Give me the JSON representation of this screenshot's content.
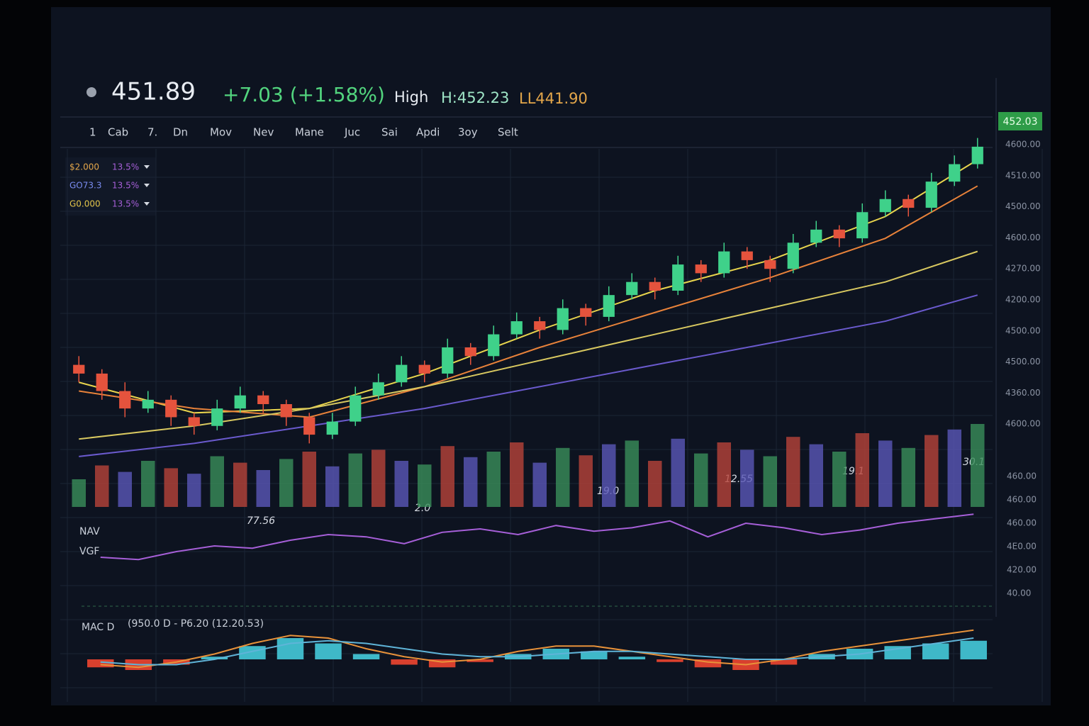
{
  "header": {
    "price": "451.89",
    "change": "+7.03 (+1.58%)",
    "high_label": "High",
    "high": "H:452.23",
    "low": "LL441.90"
  },
  "tabs": [
    "1",
    "Cab",
    "7.",
    "Dn",
    "Mov",
    "Nev",
    "Mane",
    "Juc",
    "Sai",
    "Apdi",
    "3oy",
    "Selt"
  ],
  "indicators": [
    {
      "value": "$2.000",
      "pct": "13.5%"
    },
    {
      "value": "GO73.3",
      "pct": "13.5%"
    },
    {
      "value": "G0.000",
      "pct": "13.5%"
    }
  ],
  "price_tag": "452.03",
  "price_axis_labels": [
    "4600.00",
    "4510.00",
    "4500.00",
    "4600.00",
    "4270.00",
    "4200.00",
    "4500.00",
    "4500.00",
    "4360.00",
    "4600.00"
  ],
  "lower_axis_labels": [
    "460.00",
    "460.00",
    "460.00",
    "4E0.00",
    "420.00",
    "40.00"
  ],
  "time_labels": [
    "77.56",
    "2.0",
    "19.0",
    "12.55",
    "19.1",
    "30.1"
  ],
  "panel_labels": {
    "nav": "NAV",
    "vgf": "VGF",
    "macd": "MAC D",
    "macd_params": "(950.0 D - P6.20 (12.20.53)"
  },
  "chart_data": {
    "type": "candlestick",
    "ylim": [
      380,
      458
    ],
    "up_color": "#3fd18a",
    "down_color": "#e5533d",
    "candles": [
      [
        402,
        404,
        398,
        400
      ],
      [
        400,
        401,
        394,
        396
      ],
      [
        396,
        398,
        390,
        392
      ],
      [
        392,
        396,
        391,
        394
      ],
      [
        394,
        395,
        388,
        390
      ],
      [
        390,
        391,
        386,
        388
      ],
      [
        388,
        394,
        387,
        392
      ],
      [
        392,
        397,
        391,
        395
      ],
      [
        395,
        396,
        391,
        393
      ],
      [
        393,
        394,
        388,
        390
      ],
      [
        390,
        391,
        384,
        386
      ],
      [
        386,
        391,
        385,
        389
      ],
      [
        389,
        397,
        388,
        395
      ],
      [
        395,
        400,
        394,
        398
      ],
      [
        398,
        404,
        397,
        402
      ],
      [
        402,
        403,
        398,
        400
      ],
      [
        400,
        408,
        399,
        406
      ],
      [
        406,
        407,
        402,
        404
      ],
      [
        404,
        411,
        403,
        409
      ],
      [
        409,
        414,
        408,
        412
      ],
      [
        412,
        413,
        408,
        410
      ],
      [
        410,
        417,
        409,
        415
      ],
      [
        415,
        416,
        411,
        413
      ],
      [
        413,
        420,
        412,
        418
      ],
      [
        418,
        423,
        417,
        421
      ],
      [
        421,
        422,
        417,
        419
      ],
      [
        419,
        427,
        418,
        425
      ],
      [
        425,
        426,
        421,
        423
      ],
      [
        423,
        430,
        422,
        428
      ],
      [
        428,
        429,
        424,
        426
      ],
      [
        426,
        427,
        421,
        424
      ],
      [
        424,
        432,
        423,
        430
      ],
      [
        430,
        435,
        429,
        433
      ],
      [
        433,
        434,
        429,
        431
      ],
      [
        431,
        439,
        430,
        437
      ],
      [
        437,
        442,
        436,
        440
      ],
      [
        440,
        441,
        436,
        438
      ],
      [
        438,
        446,
        437,
        444
      ],
      [
        444,
        450,
        443,
        448
      ],
      [
        448,
        454,
        447,
        452
      ]
    ],
    "volume_ylim": [
      0,
      100
    ],
    "volume": [
      30,
      45,
      38,
      50,
      42,
      36,
      55,
      48,
      40,
      52,
      60,
      44,
      58,
      62,
      50,
      46,
      66,
      54,
      60,
      70,
      48,
      64,
      56,
      68,
      72,
      50,
      74,
      58,
      70,
      62,
      55,
      76,
      68,
      60,
      80,
      72,
      64,
      78,
      84,
      90
    ],
    "ma_x": [
      0,
      5,
      10,
      15,
      20,
      25,
      30,
      35,
      39
    ],
    "ma": [
      {
        "color": "#e8d44d",
        "values": [
          398,
          391,
          392,
          400,
          410,
          419,
          426,
          436,
          449
        ]
      },
      {
        "color": "#e8823a",
        "values": [
          396,
          392,
          390,
          397,
          406,
          414,
          422,
          431,
          443
        ]
      },
      {
        "color": "#d8c860",
        "values": [
          385,
          388,
          392,
          397,
          403,
          409,
          415,
          421,
          428
        ]
      },
      {
        "color": "#6a5acd",
        "values": [
          381,
          384,
          388,
          392,
          397,
          402,
          407,
          412,
          418
        ]
      }
    ],
    "rsi_ylim": [
      0,
      100
    ],
    "rsi": [
      40,
      38,
      45,
      50,
      48,
      55,
      60,
      58,
      52,
      62,
      65,
      60,
      68,
      63,
      66,
      72,
      58,
      70,
      66,
      60,
      64,
      70,
      74,
      78
    ],
    "macd_ylim": [
      -1.2,
      1.2
    ],
    "macd_hist": [
      -0.3,
      -0.4,
      -0.2,
      0.1,
      0.5,
      0.8,
      0.6,
      0.2,
      -0.2,
      -0.3,
      -0.1,
      0.2,
      0.4,
      0.3,
      0.1,
      -0.1,
      -0.3,
      -0.4,
      -0.2,
      0.2,
      0.4,
      0.5,
      0.6,
      0.7
    ],
    "macd_line": [
      -0.2,
      -0.3,
      -0.1,
      0.2,
      0.6,
      0.9,
      0.8,
      0.4,
      0.1,
      -0.1,
      0.0,
      0.3,
      0.5,
      0.5,
      0.3,
      0.1,
      -0.1,
      -0.2,
      0.0,
      0.3,
      0.5,
      0.7,
      0.9,
      1.1
    ],
    "macd_signal": [
      -0.1,
      -0.2,
      -0.2,
      0.0,
      0.3,
      0.6,
      0.7,
      0.6,
      0.4,
      0.2,
      0.1,
      0.1,
      0.2,
      0.3,
      0.3,
      0.2,
      0.1,
      0.0,
      0.0,
      0.1,
      0.2,
      0.4,
      0.6,
      0.8
    ],
    "macd_line_color": "#e8923a",
    "macd_signal_color": "#5fb4d8",
    "hist_up_color": "#3fb8c8",
    "hist_down_color": "#d8402e",
    "rsi_color": "#a65fd8"
  }
}
